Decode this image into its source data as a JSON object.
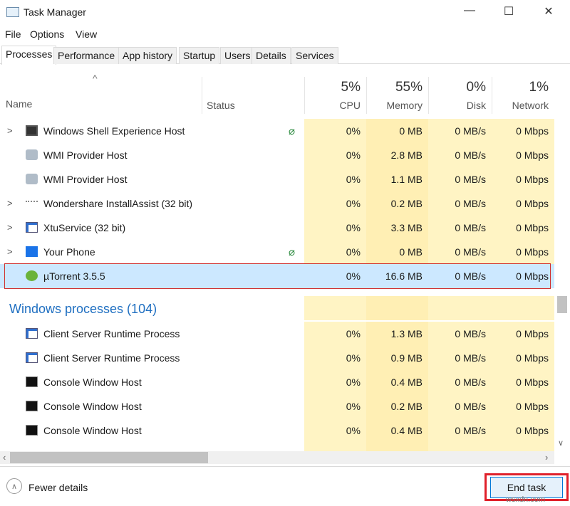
{
  "window": {
    "title": "Task Manager",
    "minimize": "—",
    "maximize": "☐",
    "close": "✕"
  },
  "menu": [
    "File",
    "Options",
    "View"
  ],
  "tabs": [
    "Processes",
    "Performance",
    "App history",
    "Startup",
    "Users",
    "Details",
    "Services"
  ],
  "header": {
    "sort_glyph": "^",
    "name": "Name",
    "status": "Status",
    "cpu": {
      "pct": "5%",
      "label": "CPU"
    },
    "memory": {
      "pct": "55%",
      "label": "Memory"
    },
    "disk": {
      "pct": "0%",
      "label": "Disk"
    },
    "network": {
      "pct": "1%",
      "label": "Network"
    }
  },
  "apps": [
    {
      "name": "Windows Shell Experience Host",
      "expand": true,
      "leaf": true,
      "icon": "window-icon",
      "cpu": "0%",
      "memory": "0 MB",
      "disk": "0 MB/s",
      "network": "0 Mbps"
    },
    {
      "name": "WMI Provider Host",
      "expand": false,
      "icon": "wmi-icon",
      "cpu": "0%",
      "memory": "2.8 MB",
      "disk": "0 MB/s",
      "network": "0 Mbps"
    },
    {
      "name": "WMI Provider Host",
      "expand": false,
      "icon": "wmi-icon",
      "cpu": "0%",
      "memory": "1.1 MB",
      "disk": "0 MB/s",
      "network": "0 Mbps"
    },
    {
      "name": "Wondershare InstallAssist (32 bit)",
      "expand": true,
      "icon": "wondershare-icon",
      "cpu": "0%",
      "memory": "0.2 MB",
      "disk": "0 MB/s",
      "network": "0 Mbps"
    },
    {
      "name": "XtuService (32 bit)",
      "expand": true,
      "icon": "service-icon",
      "cpu": "0%",
      "memory": "3.3 MB",
      "disk": "0 MB/s",
      "network": "0 Mbps"
    },
    {
      "name": "Your Phone",
      "expand": true,
      "leaf": true,
      "icon": "phone-icon",
      "cpu": "0%",
      "memory": "0 MB",
      "disk": "0 MB/s",
      "network": "0 Mbps"
    },
    {
      "name": "µTorrent 3.5.5",
      "expand": false,
      "selected": true,
      "icon": "utorrent-icon",
      "cpu": "0%",
      "memory": "16.6 MB",
      "disk": "0 MB/s",
      "network": "0 Mbps"
    }
  ],
  "group": {
    "label": "Windows processes (104)"
  },
  "windows_processes": [
    {
      "name": "Client Server Runtime Process",
      "icon": "service-icon",
      "cpu": "0%",
      "memory": "1.3 MB",
      "disk": "0 MB/s",
      "network": "0 Mbps"
    },
    {
      "name": "Client Server Runtime Process",
      "icon": "service-icon",
      "cpu": "0%",
      "memory": "0.9 MB",
      "disk": "0 MB/s",
      "network": "0 Mbps"
    },
    {
      "name": "Console Window Host",
      "icon": "console-icon",
      "cpu": "0%",
      "memory": "0.4 MB",
      "disk": "0 MB/s",
      "network": "0 Mbps"
    },
    {
      "name": "Console Window Host",
      "icon": "console-icon",
      "cpu": "0%",
      "memory": "0.2 MB",
      "disk": "0 MB/s",
      "network": "0 Mbps"
    },
    {
      "name": "Console Window Host",
      "icon": "console-icon",
      "cpu": "0%",
      "memory": "0.4 MB",
      "disk": "0 MB/s",
      "network": "0 Mbps"
    }
  ],
  "footer": {
    "fewer_details": "Fewer details",
    "end_task": "End task"
  },
  "watermark": "wsxdn.com",
  "colors": {
    "cpu_bg": "#fff4c4",
    "memory_bg": "#ffefb4",
    "selected_bg": "#cce8ff",
    "group_text": "#1f6fc1",
    "highlight": "#e0202a"
  }
}
